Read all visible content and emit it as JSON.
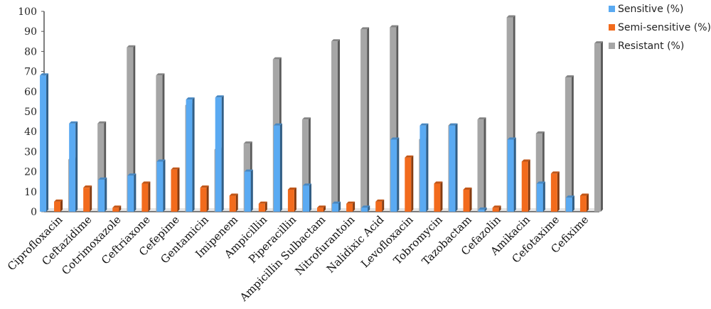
{
  "chart_data": {
    "type": "bar",
    "title": "",
    "xlabel": "",
    "ylabel": "",
    "ylim": [
      0,
      100
    ],
    "yticks": [
      0,
      10,
      20,
      30,
      40,
      50,
      60,
      70,
      80,
      90,
      100
    ],
    "grid": false,
    "legend_position": "top-right",
    "categories": [
      "Ciprofloxacin",
      "Ceftazidime",
      "Cotrimoxazole",
      "Ceftriaxone",
      "Cefepime",
      "Gentamicin",
      "Imipenem",
      "Ampicillin",
      "Piperacillin",
      "Ampicillin Sulbactam",
      "Nitrofurantoin",
      "Nalidixic Acid",
      "Levofloxacin",
      "Tobromycin",
      "Tazobactam",
      "Cefazolin",
      "Amikacin",
      "Cefotaxime",
      "Cefixime"
    ],
    "series": [
      {
        "name": "Sensitive (%)",
        "color": "#5aaaf2",
        "values": [
          68,
          44,
          16,
          18,
          25,
          56,
          57,
          20,
          43,
          13,
          4,
          2,
          36,
          43,
          43,
          1,
          36,
          14,
          7
        ]
      },
      {
        "name": "Semi-sensitive (%)",
        "color": "#f26b1d",
        "values": [
          5,
          12,
          2,
          14,
          21,
          12,
          8,
          4,
          11,
          2,
          4,
          5,
          27,
          14,
          11,
          2,
          25,
          19,
          8
        ]
      },
      {
        "name": "Resistant (%)",
        "color": "#a6a6a6",
        "values": [
          26,
          44,
          82,
          68,
          53,
          31,
          34,
          76,
          46,
          85,
          91,
          92,
          36,
          43,
          46,
          97,
          39,
          67,
          84
        ]
      }
    ]
  }
}
